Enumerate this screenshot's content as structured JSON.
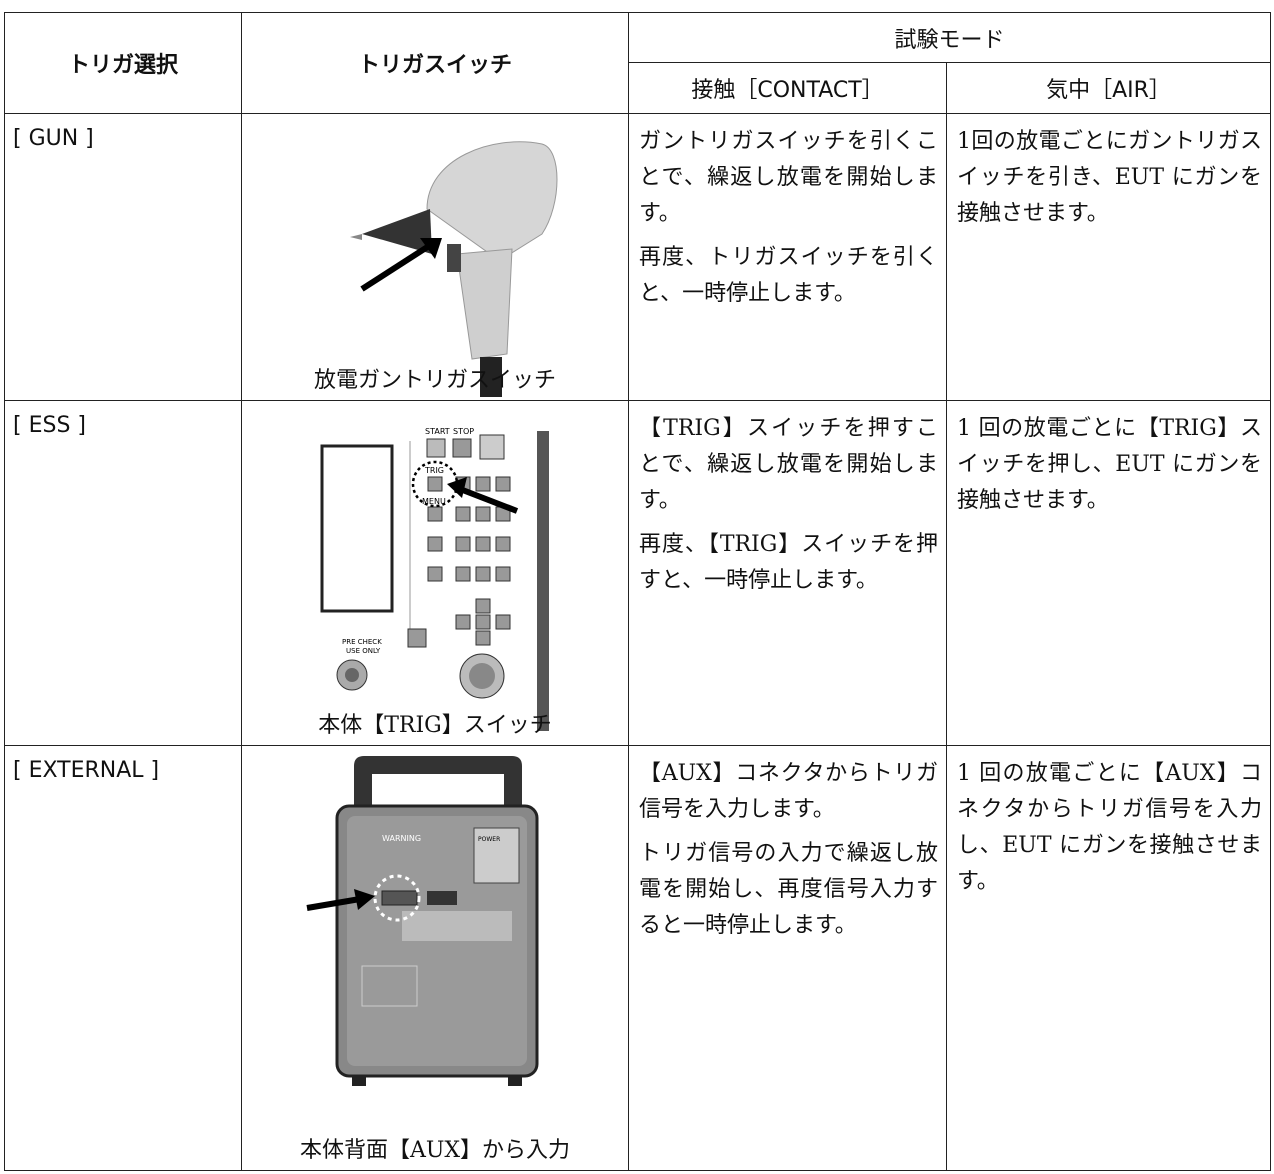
{
  "table": {
    "header": {
      "trigger": "トリガ選択",
      "switch": "トリガスイッチ",
      "mode": "試験モード",
      "contact": "接触［CONTACT］",
      "air": "気中［AIR］"
    },
    "rows": [
      {
        "trigger": "[ GUN ]",
        "caption": "放電ガントリガスイッチ",
        "contact": [
          "ガントリガスイッチを引くことで、繰返し放電を開始します。",
          "再度、トリガスイッチを引くと、一時停止します。"
        ],
        "air": [
          "1回の放電ごとにガントリガスイッチを引き、EUT にガンを接触させます。"
        ]
      },
      {
        "trigger": "[ ESS ]",
        "caption": "本体【TRIG】スイッチ",
        "panel_labels": {
          "start": "START",
          "stop": "STOP",
          "trig": "TRIG",
          "menu": "MENU",
          "precheck": "PRE CHECK",
          "useonly": "USE ONLY"
        },
        "contact": [
          "【TRIG】スイッチを押すことで、繰返し放電を開始します。",
          "再度、【TRIG】スイッチを押すと、一時停止します。"
        ],
        "air": [
          "1 回の放電ごとに【TRIG】スイッチを押し、EUT にガンを接触させます。"
        ]
      },
      {
        "trigger": "[ EXTERNAL ]",
        "caption": "本体背面【AUX】から入力",
        "panel_labels": {
          "warning": "WARNING",
          "power": "POWER"
        },
        "contact": [
          "【AUX】コネクタからトリガ信号を入力します。",
          "トリガ信号の入力で繰返し放電を開始し、再度信号入力すると一時停止します。"
        ],
        "air": [
          "1 回の放電ごとに【AUX】コネクタからトリガ信号を入力し、EUT にガンを接触させます。"
        ]
      }
    ]
  }
}
